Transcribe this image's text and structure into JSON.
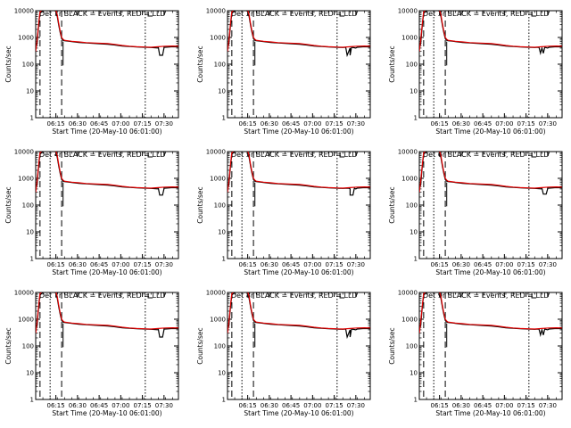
{
  "chart_data": {
    "type": "line",
    "panel_layout": "3 x 3 grid",
    "title_template": "Det {det} BLACK = Events, RED = LLD",
    "xlabel": "Start Time (20-May-10 06:01:00)",
    "ylabel": "Counts/sec",
    "x_tick_labels": [
      "06:15",
      "06:30",
      "06:45",
      "07:00",
      "07:15",
      "07:30"
    ],
    "x_tick_minutes": [
      14,
      29,
      44,
      59,
      74,
      89
    ],
    "xlim_minutes": [
      0,
      99
    ],
    "yscale": "log",
    "ylim": [
      1,
      10000
    ],
    "y_tick_labels": [
      "1",
      "10",
      "100",
      "1000",
      "10000"
    ],
    "series_colors": {
      "events": "#000000",
      "lld": "#e00000"
    },
    "markers": {
      "dashed_minutes": [
        3,
        18
      ],
      "dotted_minutes": [
        10,
        76
      ],
      "bracket_minute": 78
    },
    "events_profile": {
      "minutes": [
        0,
        1,
        2,
        3,
        5,
        7,
        9,
        11,
        13,
        14,
        15,
        16,
        17,
        18,
        19,
        20,
        25,
        30,
        35,
        40,
        50,
        55,
        60,
        65,
        70,
        75,
        80,
        85,
        86,
        87,
        88,
        89,
        90,
        95,
        99
      ],
      "counts": [
        400,
        600,
        2500,
        8000,
        10000,
        10500,
        11000,
        10800,
        10500,
        9500,
        6000,
        2800,
        1500,
        900,
        780,
        750,
        700,
        650,
        620,
        600,
        560,
        520,
        480,
        460,
        440,
        430,
        420,
        400,
        240,
        200,
        210,
        400,
        430,
        450,
        440
      ]
    },
    "lld_profile": {
      "minutes": [
        0,
        1,
        2,
        3,
        5,
        7,
        9,
        11,
        13,
        14,
        15,
        16,
        17,
        18,
        19,
        20,
        25,
        30,
        35,
        40,
        50,
        55,
        60,
        65,
        70,
        75,
        80,
        85,
        90,
        95,
        99
      ],
      "counts": [
        300,
        800,
        3000,
        9000,
        11500,
        12000,
        12200,
        12000,
        11500,
        10500,
        7000,
        3200,
        1700,
        1000,
        850,
        780,
        720,
        680,
        640,
        620,
        590,
        550,
        500,
        470,
        450,
        440,
        430,
        450,
        470,
        480,
        470
      ]
    },
    "panels": [
      {
        "det": "1r",
        "dip_minute": 86,
        "dip_depth": 0.5
      },
      {
        "det": "2r",
        "dip_minute": 83,
        "dip_depth": 0.5
      },
      {
        "det": "3r",
        "dip_minute": 84,
        "dip_depth": 0.6
      },
      {
        "det": "4r",
        "dip_minute": 86,
        "dip_depth": 0.55
      },
      {
        "det": "5r",
        "dip_minute": 85,
        "dip_depth": 0.55
      },
      {
        "det": "6r",
        "dip_minute": 86,
        "dip_depth": 0.6
      },
      {
        "det": "7r",
        "dip_minute": 86,
        "dip_depth": 0.5
      },
      {
        "det": "8r",
        "dip_minute": 83,
        "dip_depth": 0.5
      },
      {
        "det": "9r",
        "dip_minute": 84,
        "dip_depth": 0.6
      }
    ]
  }
}
